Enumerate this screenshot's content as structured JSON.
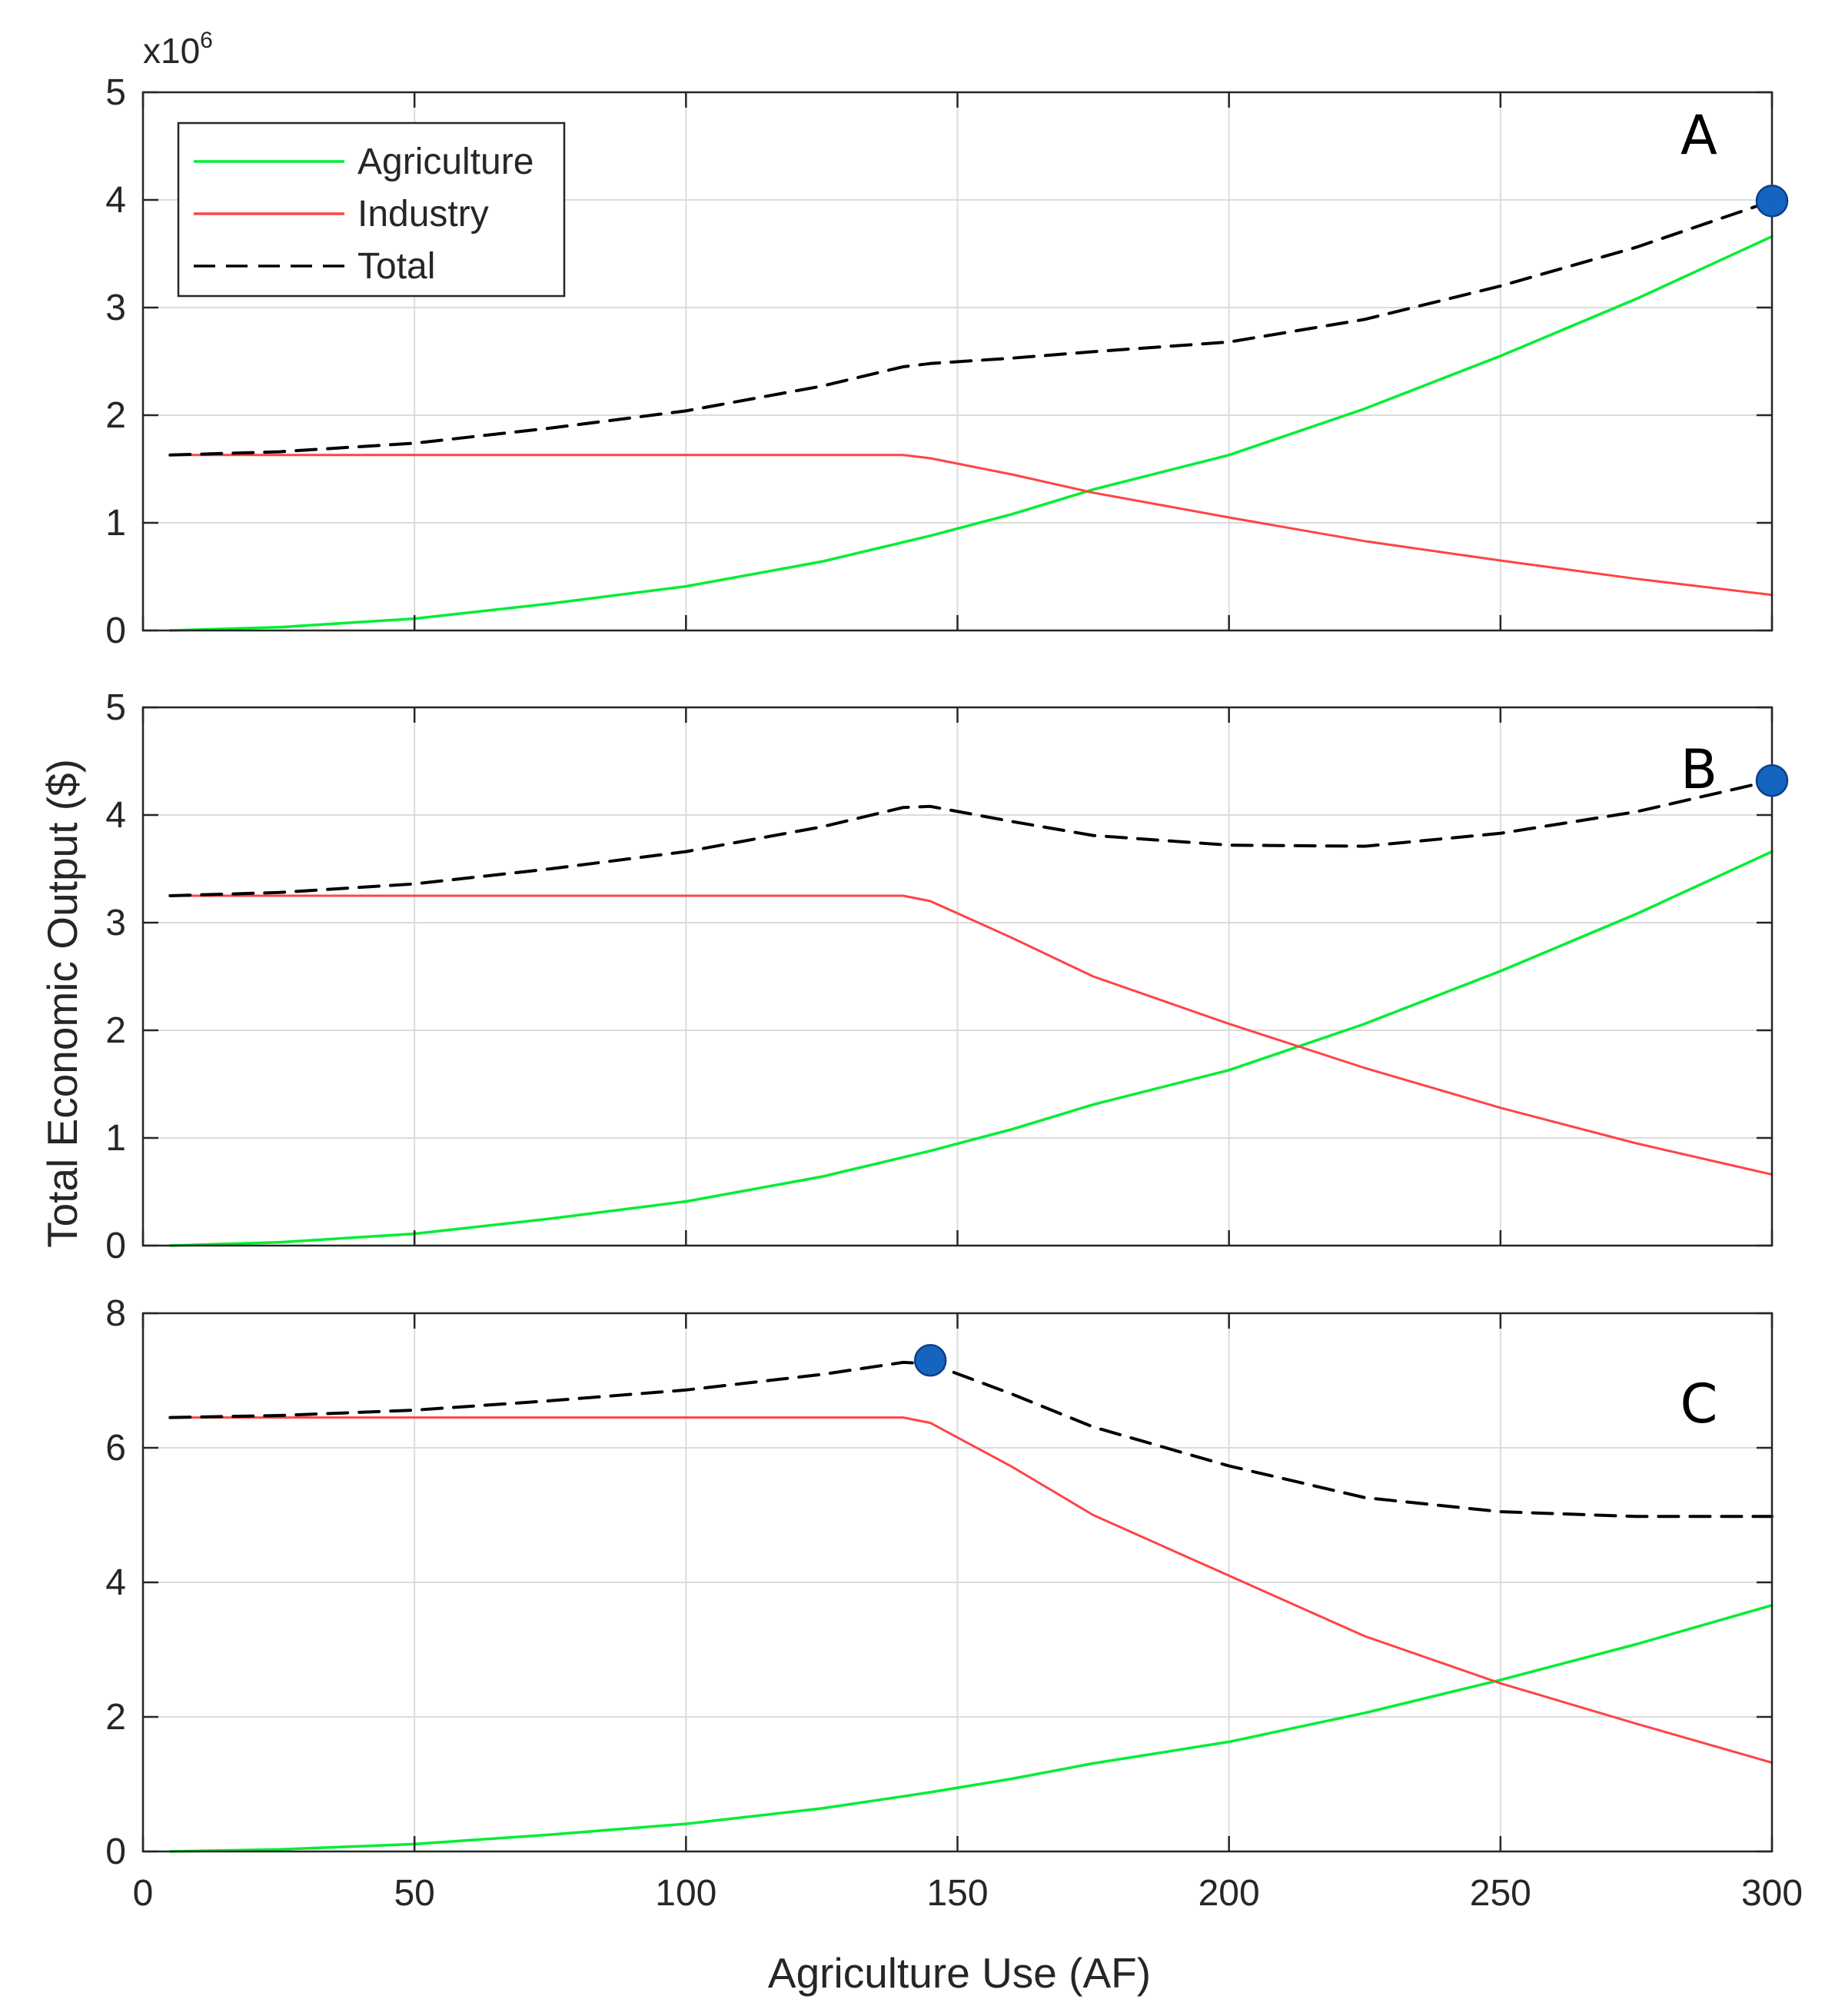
{
  "chart_data": {
    "type": "line",
    "x_range": [
      0,
      300
    ],
    "x_ticks": [
      0,
      50,
      100,
      150,
      200,
      250,
      300
    ],
    "xlabel": "Agriculture Use (AF)",
    "ylabel": "Total Economic Output ($)",
    "exponent_base": "x10",
    "exponent_power": "6",
    "grid": true,
    "legend": {
      "placement": "top-left of panel A",
      "entries": [
        {
          "name": "Agriculture",
          "color": "#00ee33",
          "style": "solid"
        },
        {
          "name": "Industry",
          "color": "#ff4444",
          "style": "solid"
        },
        {
          "name": "Total",
          "color": "#000000",
          "style": "dashed"
        }
      ]
    },
    "marker_color": "#1565c0",
    "x": [
      5,
      25,
      50,
      75,
      100,
      125,
      140,
      145,
      160,
      175,
      200,
      225,
      250,
      275,
      300
    ],
    "panels": [
      {
        "letter": "A",
        "ylim": [
          0,
          5
        ],
        "yticks": [
          0,
          1,
          2,
          3,
          4,
          5
        ],
        "series": [
          {
            "name": "Agriculture",
            "values": [
              0.0,
              0.03,
              0.11,
              0.25,
              0.41,
              0.64,
              0.82,
              0.88,
              1.08,
              1.31,
              1.63,
              2.06,
              2.55,
              3.08,
              3.66
            ]
          },
          {
            "name": "Industry",
            "values": [
              1.63,
              1.63,
              1.63,
              1.63,
              1.63,
              1.63,
              1.63,
              1.6,
              1.45,
              1.28,
              1.05,
              0.83,
              0.65,
              0.48,
              0.33
            ]
          },
          {
            "name": "Total",
            "values": [
              1.63,
              1.66,
              1.74,
              1.88,
              2.04,
              2.27,
              2.45,
              2.48,
              2.53,
              2.59,
              2.68,
              2.89,
              3.2,
              3.56,
              3.99
            ]
          }
        ],
        "optimum": {
          "x": 300,
          "y": 3.99
        }
      },
      {
        "letter": "B",
        "ylim": [
          0,
          5
        ],
        "yticks": [
          0,
          1,
          2,
          3,
          4,
          5
        ],
        "series": [
          {
            "name": "Agriculture",
            "values": [
              0.0,
              0.03,
              0.11,
              0.25,
              0.41,
              0.64,
              0.82,
              0.88,
              1.08,
              1.31,
              1.63,
              2.06,
              2.55,
              3.08,
              3.66
            ]
          },
          {
            "name": "Industry",
            "values": [
              3.25,
              3.25,
              3.25,
              3.25,
              3.25,
              3.25,
              3.25,
              3.2,
              2.86,
              2.5,
              2.06,
              1.65,
              1.28,
              0.95,
              0.66
            ]
          },
          {
            "name": "Total",
            "values": [
              3.25,
              3.28,
              3.36,
              3.5,
              3.66,
              3.89,
              4.07,
              4.08,
              3.94,
              3.81,
              3.72,
              3.71,
              3.83,
              4.03,
              4.32
            ]
          }
        ],
        "optimum": {
          "x": 300,
          "y": 4.32
        }
      },
      {
        "letter": "C",
        "ylim": [
          0,
          8
        ],
        "yticks": [
          0,
          2,
          4,
          6,
          8
        ],
        "series": [
          {
            "name": "Agriculture",
            "values": [
              0.0,
              0.03,
              0.11,
              0.25,
              0.41,
              0.64,
              0.82,
              0.88,
              1.08,
              1.31,
              1.63,
              2.06,
              2.55,
              3.08,
              3.66
            ]
          },
          {
            "name": "Industry",
            "values": [
              6.45,
              6.45,
              6.45,
              6.45,
              6.45,
              6.45,
              6.45,
              6.37,
              5.72,
              5.0,
              4.1,
              3.2,
              2.5,
              1.9,
              1.32
            ]
          },
          {
            "name": "Total",
            "values": [
              6.45,
              6.48,
              6.56,
              6.7,
              6.86,
              7.09,
              7.27,
              7.25,
              6.8,
              6.31,
              5.73,
              5.26,
              5.05,
              4.98,
              4.98
            ]
          }
        ],
        "optimum": {
          "x": 145,
          "y": 7.3
        }
      }
    ]
  }
}
